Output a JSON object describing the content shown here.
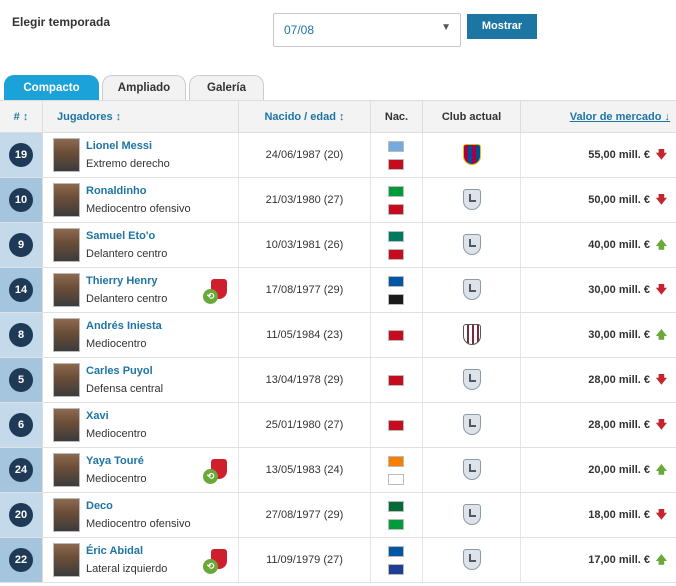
{
  "filter": {
    "season_label": "Elegir temporada",
    "season_value": "07/08",
    "show_button": "Mostrar"
  },
  "tabs": [
    "Compacto",
    "Ampliado",
    "Galería"
  ],
  "columns": {
    "num": "# ↕",
    "players": "Jugadores ↕",
    "born": "Nacido / edad ↕",
    "nat": "Nac.",
    "club": "Club actual",
    "value": "Valor de mercado ↓"
  },
  "colors": {
    "accent": "#1d75a3",
    "tab_active": "#1ba2d8",
    "up": "#6aa83a",
    "down": "#c4262e"
  },
  "players": [
    {
      "num": "19",
      "name": "Lionel Messi",
      "position": "Extremo derecho",
      "born": "24/06/1987 (20)",
      "flags": [
        "#74acdf",
        "#c60b1e"
      ],
      "club_icon": "barcelona-crest",
      "value": "55,00 mill. €",
      "trend": "down",
      "trend_icon": "arrow-down-icon",
      "trend_glyph": "🡇"
    },
    {
      "num": "10",
      "name": "Ronaldinho",
      "position": "Mediocentro ofensivo",
      "born": "21/03/1980 (27)",
      "flags": [
        "#009c3b",
        "#c60b1e"
      ],
      "club_icon": "generic-club-crest",
      "value": "50,00 mill. €",
      "trend": "down",
      "trend_icon": "arrow-down-icon",
      "trend_glyph": "🡇"
    },
    {
      "num": "9",
      "name": "Samuel Eto'o",
      "position": "Delantero centro",
      "born": "10/03/1981 (26)",
      "flags": [
        "#007a5e",
        "#c60b1e"
      ],
      "club_icon": "generic-club-crest",
      "value": "40,00 mill. €",
      "trend": "up",
      "trend_icon": "arrow-up-icon",
      "trend_glyph": "🡅"
    },
    {
      "num": "14",
      "name": "Thierry Henry",
      "position": "Delantero centro",
      "born": "17/08/1977 (29)",
      "flags": [
        "#0055a4",
        "#1a1a1a"
      ],
      "club_icon": "generic-club-crest",
      "value": "30,00 mill. €",
      "trend": "down",
      "trend_icon": "arrow-down-icon",
      "trend_glyph": "🡇",
      "extra": true
    },
    {
      "num": "8",
      "name": "Andrés Iniesta",
      "position": "Mediocentro",
      "born": "11/05/1984 (23)",
      "flags": [
        "#c60b1e"
      ],
      "club_icon": "striped-club-crest",
      "value": "30,00 mill. €",
      "trend": "up",
      "trend_icon": "arrow-up-icon",
      "trend_glyph": "🡅"
    },
    {
      "num": "5",
      "name": "Carles Puyol",
      "position": "Defensa central",
      "born": "13/04/1978 (29)",
      "flags": [
        "#c60b1e"
      ],
      "club_icon": "generic-club-crest",
      "value": "28,00 mill. €",
      "trend": "down",
      "trend_icon": "arrow-down-icon",
      "trend_glyph": "🡇"
    },
    {
      "num": "6",
      "name": "Xavi",
      "position": "Mediocentro",
      "born": "25/01/1980 (27)",
      "flags": [
        "#c60b1e"
      ],
      "club_icon": "generic-club-crest",
      "value": "28,00 mill. €",
      "trend": "down",
      "trend_icon": "arrow-down-icon",
      "trend_glyph": "🡇"
    },
    {
      "num": "24",
      "name": "Yaya Touré",
      "position": "Mediocentro",
      "born": "13/05/1983 (24)",
      "flags": [
        "#f77f00",
        "#ffffff"
      ],
      "club_icon": "generic-club-crest",
      "value": "20,00 mill. €",
      "trend": "up",
      "trend_icon": "arrow-up-icon",
      "trend_glyph": "🡅",
      "extra": true
    },
    {
      "num": "20",
      "name": "Deco",
      "position": "Mediocentro ofensivo",
      "born": "27/08/1977 (29)",
      "flags": [
        "#046a38",
        "#009c3b"
      ],
      "club_icon": "generic-club-crest",
      "value": "18,00 mill. €",
      "trend": "down",
      "trend_icon": "arrow-down-icon",
      "trend_glyph": "🡇"
    },
    {
      "num": "22",
      "name": "Éric Abidal",
      "position": "Lateral izquierdo",
      "born": "11/09/1979 (27)",
      "flags": [
        "#0055a4",
        "#1c3f94"
      ],
      "club_icon": "generic-club-crest",
      "value": "17,00 mill. €",
      "trend": "up",
      "trend_icon": "arrow-up-icon",
      "trend_glyph": "🡅",
      "extra": true
    }
  ]
}
